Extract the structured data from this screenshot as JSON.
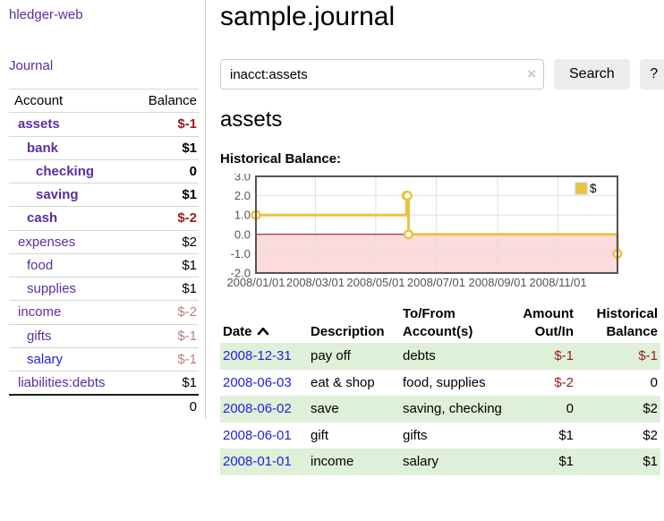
{
  "brand": "hledger-web",
  "nav": {
    "journal": "Journal"
  },
  "sidebar": {
    "account_header": "Account",
    "balance_header": "Balance",
    "accounts": [
      {
        "name": "assets",
        "balance": "$-1",
        "depth": 1,
        "bold": true,
        "balance_style": "neg"
      },
      {
        "name": "bank",
        "balance": "$1",
        "depth": 2,
        "bold": true,
        "balance_style": ""
      },
      {
        "name": "checking",
        "balance": "0",
        "depth": 3,
        "bold": true,
        "balance_style": ""
      },
      {
        "name": "saving",
        "balance": "$1",
        "depth": 3,
        "bold": true,
        "balance_style": ""
      },
      {
        "name": "cash",
        "balance": "$-2",
        "depth": 2,
        "bold": true,
        "balance_style": "neg"
      },
      {
        "name": "expenses",
        "balance": "$2",
        "depth": 1,
        "bold": false,
        "balance_style": ""
      },
      {
        "name": "food",
        "balance": "$1",
        "depth": 2,
        "bold": false,
        "balance_style": ""
      },
      {
        "name": "supplies",
        "balance": "$1",
        "depth": 2,
        "bold": false,
        "balance_style": ""
      },
      {
        "name": "income",
        "balance": "$-2",
        "depth": 1,
        "bold": false,
        "balance_style": "neg-faded"
      },
      {
        "name": "gifts",
        "balance": "$-1",
        "depth": 2,
        "bold": false,
        "balance_style": "neg-faded"
      },
      {
        "name": "salary",
        "balance": "$-1",
        "depth": 2,
        "bold": false,
        "balance_style": "neg-faded",
        "link_style": "unvisited"
      },
      {
        "name": "liabilities:debts",
        "balance": "$1",
        "depth": 1,
        "bold": false,
        "balance_style": ""
      }
    ],
    "total": "0"
  },
  "main": {
    "title": "sample.journal",
    "search": {
      "value": "inacct:assets",
      "clear": "×",
      "search_button": "Search",
      "help_button": "?"
    },
    "account_heading": "assets",
    "chart_title": "Historical Balance:"
  },
  "chart_data": {
    "type": "line",
    "title": "Historical Balance",
    "step": true,
    "legend": [
      {
        "label": "$",
        "color": "#edc240"
      }
    ],
    "legend_position": "top-right",
    "ylim": [
      -2,
      3
    ],
    "yticks": [
      {
        "label": "3.0",
        "value": 3
      },
      {
        "label": "2.0",
        "value": 2
      },
      {
        "label": "1.0",
        "value": 1
      },
      {
        "label": "0.0",
        "value": 0
      },
      {
        "label": "-1.0",
        "value": -1
      },
      {
        "label": "-2.0",
        "value": -2
      }
    ],
    "x_range_days": [
      0,
      365
    ],
    "xticks": [
      {
        "label": "2008/01/01",
        "day": 0
      },
      {
        "label": "2008/03/01",
        "day": 60
      },
      {
        "label": "2008/05/01",
        "day": 121
      },
      {
        "label": "2008/07/01",
        "day": 182
      },
      {
        "label": "2008/09/01",
        "day": 244
      },
      {
        "label": "2008/11/01",
        "day": 305
      }
    ],
    "series": [
      {
        "name": "$",
        "color": "#edc240",
        "points": [
          {
            "date": "2008-01-01",
            "day": 0,
            "value": 1
          },
          {
            "date": "2008-06-01",
            "day": 152,
            "value": 2
          },
          {
            "date": "2008-06-02",
            "day": 153,
            "value": 2
          },
          {
            "date": "2008-06-03",
            "day": 154,
            "value": 0
          },
          {
            "date": "2008-12-31",
            "day": 365,
            "value": -1
          }
        ]
      }
    ],
    "grid": true,
    "grid_color": "#e0e0e0",
    "border_color": "#545454",
    "tick_label_color": "#545454",
    "negative_fill": "#fbdbdb",
    "zero_line_color": "#8b0000"
  },
  "register": {
    "columns": {
      "date": "Date",
      "description": "Description",
      "tofrom": "To/From Account(s)",
      "amount": "Amount Out/In",
      "balance": "Historical Balance"
    },
    "rows": [
      {
        "date": "2008-12-31",
        "description": "pay off",
        "accounts": "debts",
        "amount": "$-1",
        "amount_style": "neg",
        "balance": "$-1",
        "balance_style": "neg"
      },
      {
        "date": "2008-06-03",
        "description": "eat & shop",
        "accounts": "food, supplies",
        "amount": "$-2",
        "amount_style": "neg",
        "balance": "0",
        "balance_style": ""
      },
      {
        "date": "2008-06-02",
        "description": "save",
        "accounts": "saving, checking",
        "amount": "0",
        "amount_style": "",
        "balance": "$2",
        "balance_style": ""
      },
      {
        "date": "2008-06-01",
        "description": "gift",
        "accounts": "gifts",
        "amount": "$1",
        "amount_style": "",
        "balance": "$2",
        "balance_style": ""
      },
      {
        "date": "2008-01-01",
        "description": "income",
        "accounts": "salary",
        "amount": "$1",
        "amount_style": "",
        "balance": "$1",
        "balance_style": ""
      }
    ]
  },
  "colors": {
    "link_purple": "#5c2da0",
    "link_blue": "#2222dd",
    "negative_strong": "#9a1b1f",
    "negative_faded": "#bd7e80",
    "row_stripe_green": "#dff0d8",
    "series_yellow": "#edc240"
  }
}
